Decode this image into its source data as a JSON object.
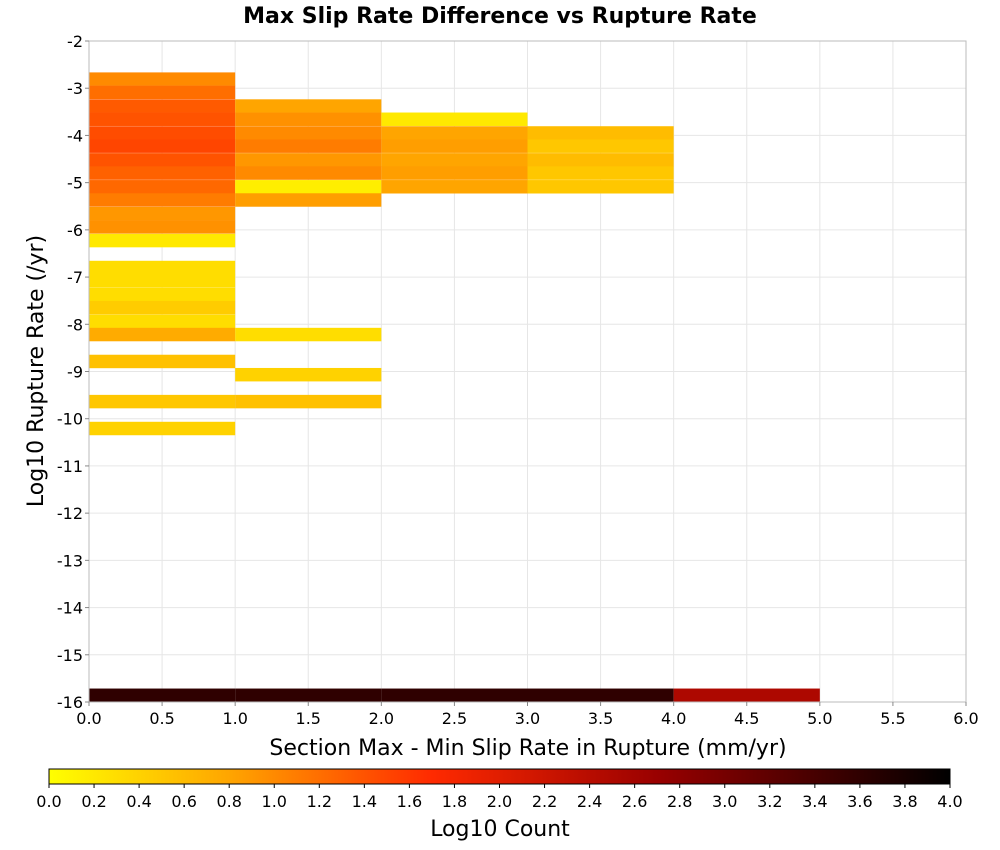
{
  "chart_data": {
    "type": "heatmap",
    "title": "Max Slip Rate Difference vs Rupture Rate",
    "xlabel": "Section Max - Min Slip Rate in Rupture (mm/yr)",
    "ylabel": "Log10 Rupture Rate (/yr)",
    "xlim": [
      0,
      6
    ],
    "ylim": [
      -16,
      -2
    ],
    "x_ticks": [
      "0.0",
      "0.5",
      "1.0",
      "1.5",
      "2.0",
      "2.5",
      "3.0",
      "3.5",
      "4.0",
      "4.5",
      "5.0",
      "5.5",
      "6.0"
    ],
    "y_ticks": [
      "-2",
      "-3",
      "-4",
      "-5",
      "-6",
      "-7",
      "-8",
      "-9",
      "-10",
      "-11",
      "-12",
      "-13",
      "-14",
      "-15",
      "-16"
    ],
    "grid": true,
    "x_bin_width": 1.0,
    "y_bin_height": 0.285,
    "cells": [
      {
        "x": 0,
        "y": -2.95,
        "log10_count": 1.0
      },
      {
        "x": 0,
        "y": -3.23,
        "log10_count": 1.2
      },
      {
        "x": 0,
        "y": -3.52,
        "log10_count": 1.35
      },
      {
        "x": 0,
        "y": -3.8,
        "log10_count": 1.4
      },
      {
        "x": 0,
        "y": -4.09,
        "log10_count": 1.45
      },
      {
        "x": 0,
        "y": -4.37,
        "log10_count": 1.5
      },
      {
        "x": 0,
        "y": -4.66,
        "log10_count": 1.4
      },
      {
        "x": 0,
        "y": -4.94,
        "log10_count": 1.3
      },
      {
        "x": 0,
        "y": -5.23,
        "log10_count": 1.25
      },
      {
        "x": 0,
        "y": -5.51,
        "log10_count": 1.1
      },
      {
        "x": 0,
        "y": -5.8,
        "log10_count": 0.9
      },
      {
        "x": 0,
        "y": -6.08,
        "log10_count": 0.95
      },
      {
        "x": 0,
        "y": -6.37,
        "log10_count": 0.2
      },
      {
        "x": 0,
        "y": -6.94,
        "log10_count": 0.3
      },
      {
        "x": 0,
        "y": -7.22,
        "log10_count": 0.3
      },
      {
        "x": 0,
        "y": -7.51,
        "log10_count": 0.3
      },
      {
        "x": 0,
        "y": -7.79,
        "log10_count": 0.45
      },
      {
        "x": 0,
        "y": -8.08,
        "log10_count": 0.3
      },
      {
        "x": 0,
        "y": -8.36,
        "log10_count": 0.75
      },
      {
        "x": 0,
        "y": -8.93,
        "log10_count": 0.55
      },
      {
        "x": 0,
        "y": -9.78,
        "log10_count": 0.5
      },
      {
        "x": 0,
        "y": -10.35,
        "log10_count": 0.4
      },
      {
        "x": 1,
        "y": -3.52,
        "log10_count": 0.8
      },
      {
        "x": 1,
        "y": -3.8,
        "log10_count": 0.95
      },
      {
        "x": 1,
        "y": -4.09,
        "log10_count": 1.0
      },
      {
        "x": 1,
        "y": -4.37,
        "log10_count": 1.1
      },
      {
        "x": 1,
        "y": -4.66,
        "log10_count": 0.9
      },
      {
        "x": 1,
        "y": -4.94,
        "log10_count": 1.0
      },
      {
        "x": 1,
        "y": -5.23,
        "log10_count": 0.15
      },
      {
        "x": 1,
        "y": -5.51,
        "log10_count": 0.85
      },
      {
        "x": 1,
        "y": -8.36,
        "log10_count": 0.3
      },
      {
        "x": 1,
        "y": -9.21,
        "log10_count": 0.4
      },
      {
        "x": 1,
        "y": -9.78,
        "log10_count": 0.55
      },
      {
        "x": 2,
        "y": -3.8,
        "log10_count": 0.2
      },
      {
        "x": 2,
        "y": -4.09,
        "log10_count": 0.8
      },
      {
        "x": 2,
        "y": -4.37,
        "log10_count": 0.85
      },
      {
        "x": 2,
        "y": -4.66,
        "log10_count": 0.8
      },
      {
        "x": 2,
        "y": -4.94,
        "log10_count": 0.85
      },
      {
        "x": 2,
        "y": -5.23,
        "log10_count": 0.8
      },
      {
        "x": 3,
        "y": -4.09,
        "log10_count": 0.6
      },
      {
        "x": 3,
        "y": -4.37,
        "log10_count": 0.5
      },
      {
        "x": 3,
        "y": -4.66,
        "log10_count": 0.6
      },
      {
        "x": 3,
        "y": -4.94,
        "log10_count": 0.5
      },
      {
        "x": 3,
        "y": -5.23,
        "log10_count": 0.5
      },
      {
        "x": 0,
        "y": -16.0,
        "log10_count": 3.6
      },
      {
        "x": 1,
        "y": -16.0,
        "log10_count": 3.6
      },
      {
        "x": 2,
        "y": -16.0,
        "log10_count": 3.6
      },
      {
        "x": 3,
        "y": -16.0,
        "log10_count": 3.6
      },
      {
        "x": 4,
        "y": -16.0,
        "log10_count": 2.5
      }
    ],
    "colorbar": {
      "label": "Log10 Count",
      "range": [
        0.0,
        4.0
      ],
      "ticks": [
        "0.0",
        "0.2",
        "0.4",
        "0.6",
        "0.8",
        "1.0",
        "1.2",
        "1.4",
        "1.6",
        "1.8",
        "2.0",
        "2.2",
        "2.4",
        "2.6",
        "2.8",
        "3.0",
        "3.2",
        "3.4",
        "3.6",
        "3.8",
        "4.0"
      ],
      "stops": [
        {
          "v": 0.0,
          "color": "#ffff00"
        },
        {
          "v": 0.8,
          "color": "#ffa500"
        },
        {
          "v": 1.7,
          "color": "#ff2a00"
        },
        {
          "v": 2.7,
          "color": "#990000"
        },
        {
          "v": 4.0,
          "color": "#000000"
        }
      ]
    }
  }
}
